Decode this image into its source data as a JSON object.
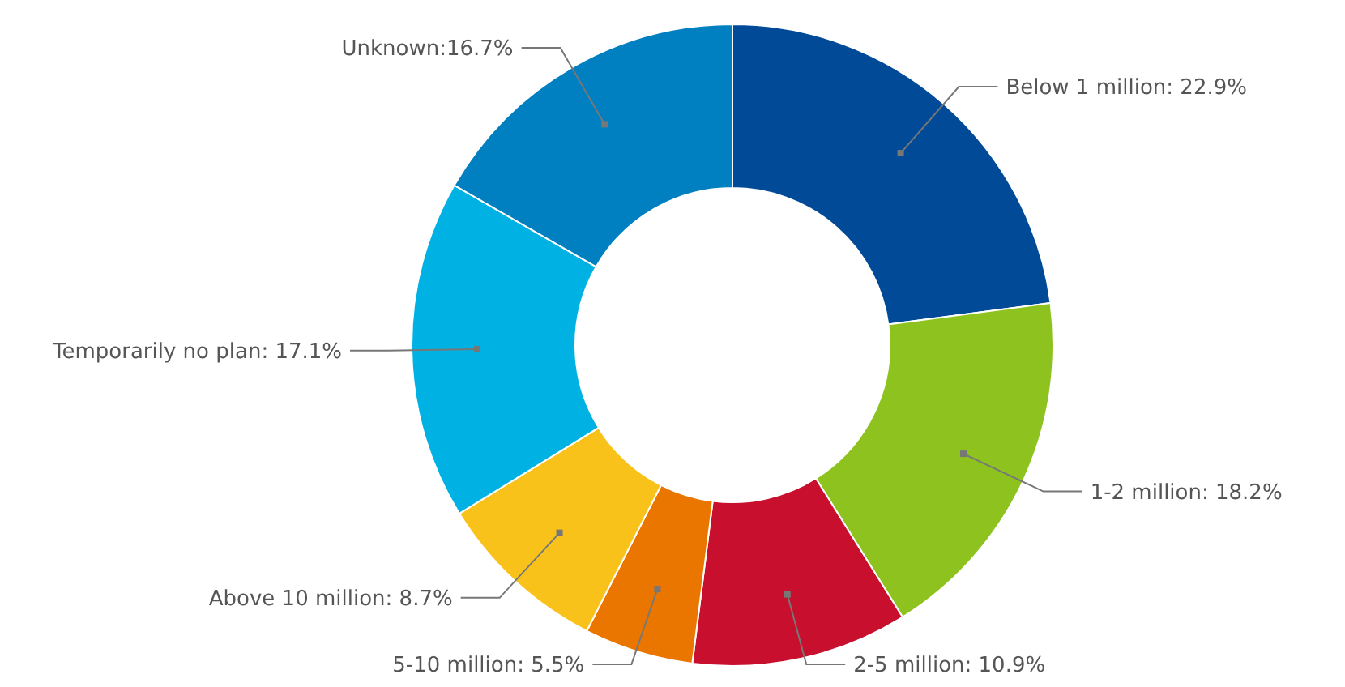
{
  "chart_data": {
    "type": "donut",
    "categories": [
      "Below 1 million",
      "1-2 million",
      "2-5 million",
      "5-10 million",
      "Above 10 million",
      "Temporarily no plan",
      "Unknown"
    ],
    "values": [
      22.9,
      18.2,
      10.9,
      5.5,
      8.7,
      17.1,
      16.7
    ],
    "colors": [
      "#004a98",
      "#8dc21f",
      "#c8102e",
      "#ea7600",
      "#f9c21b",
      "#00b2e3",
      "#0080c0"
    ],
    "value_labels": [
      ": 22.9%",
      ": 18.2%",
      ": 10.9%",
      ": 5.5%",
      ": 8.7%",
      ": 17.1%",
      ":16.7%"
    ]
  }
}
